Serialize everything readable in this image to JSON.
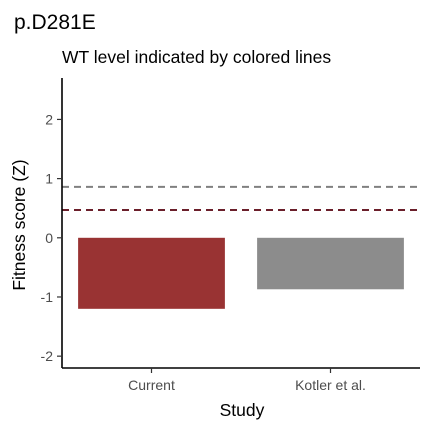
{
  "chart_data": {
    "type": "bar",
    "title": "p.D281E",
    "subtitle": "WT level indicated by colored lines",
    "xlabel": "Study",
    "ylabel": "Fitness score (Z)",
    "categories": [
      "Current",
      "Kotler et al."
    ],
    "values": [
      -1.2,
      -0.87
    ],
    "bar_colors": [
      "#993333",
      "#8c8c8c"
    ],
    "reference_lines": [
      {
        "value": 0.86,
        "color": "#808080",
        "style": "dashed"
      },
      {
        "value": 0.47,
        "color": "#6b1f2b",
        "style": "dashed"
      }
    ],
    "yticks": [
      "2",
      "1",
      "0",
      "-1",
      "-2"
    ],
    "ylim": [
      -2.2,
      2.7
    ],
    "grid": false,
    "legend": "none"
  }
}
